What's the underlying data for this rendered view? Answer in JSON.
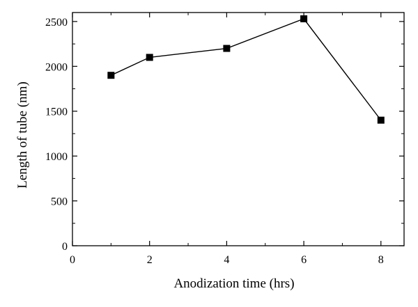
{
  "chart_data": {
    "type": "line",
    "xlabel": "Anodization time (hrs)",
    "ylabel": "Length of tube (nm)",
    "xlim": [
      0,
      8.6
    ],
    "ylim": [
      0,
      2600
    ],
    "x_ticks": [
      0,
      2,
      4,
      6,
      8
    ],
    "y_ticks": [
      0,
      500,
      1000,
      1500,
      2000,
      2500
    ],
    "grid": false,
    "marker": "square",
    "series": [
      {
        "x": [
          1,
          2,
          4,
          6,
          8
        ],
        "y": [
          1900,
          2100,
          2200,
          2530,
          1400
        ]
      }
    ],
    "colors": {
      "line": "#000000",
      "marker": "#000000",
      "axis": "#000000"
    }
  }
}
